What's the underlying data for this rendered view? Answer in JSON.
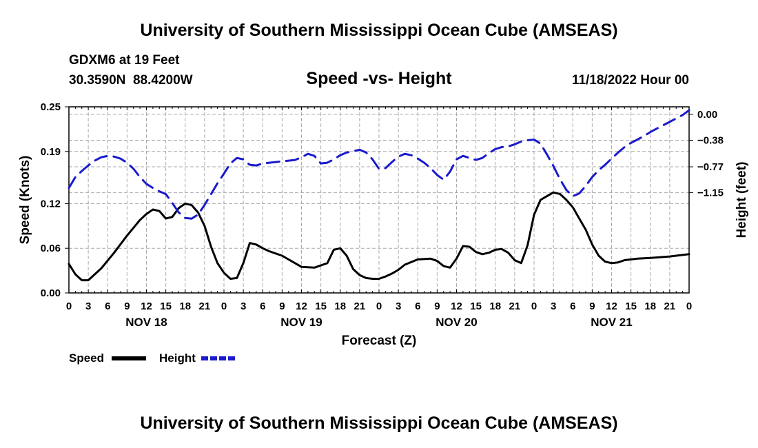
{
  "header": {
    "title": "University of Southern Mississippi Ocean Cube (AMSEAS)",
    "station": "GDXM6 at 19 Feet",
    "coords": "30.3590N  88.4200W",
    "chart_title": "Speed -vs- Height",
    "run_time": "11/18/2022 Hour 00"
  },
  "footer": {
    "title": "University of Southern Mississippi Ocean Cube (AMSEAS)"
  },
  "legend": {
    "speed_label": "Speed",
    "height_label": "Height"
  },
  "colors": {
    "speed": "#000000",
    "height": "#1a1acc",
    "grid": "#aaaaaa"
  },
  "chart_data": {
    "type": "line",
    "title": "Speed -vs- Height",
    "xlabel": "Forecast (Z)",
    "ylabel": "Speed (Knots)",
    "y2label": "Height (feet)",
    "xlim": [
      0,
      96
    ],
    "ylim": [
      0,
      0.25
    ],
    "y2lim": [
      -2.62,
      0.11
    ],
    "yticks": [
      0.0,
      0.06,
      0.12,
      0.19,
      0.25
    ],
    "ytick_labels": [
      "0.00",
      "0.06",
      "0.12",
      "0.19",
      "0.25"
    ],
    "y2ticks": [
      0.0,
      -0.38,
      -0.77,
      -1.15
    ],
    "y2tick_labels": [
      "0.00",
      "−0.38",
      "−0.77",
      "−1.15"
    ],
    "xticks": [
      0,
      3,
      6,
      9,
      12,
      15,
      18,
      21,
      24,
      27,
      30,
      33,
      36,
      39,
      42,
      45,
      48,
      51,
      54,
      57,
      60,
      63,
      66,
      69,
      72,
      75,
      78,
      81,
      84,
      87,
      90,
      93,
      96
    ],
    "xtick_labels": [
      "0",
      "3",
      "6",
      "9",
      "12",
      "15",
      "18",
      "21",
      "0",
      "3",
      "6",
      "9",
      "12",
      "15",
      "18",
      "21",
      "0",
      "3",
      "6",
      "9",
      "12",
      "15",
      "18",
      "21",
      "0",
      "3",
      "6",
      "9",
      "12",
      "15",
      "18",
      "21",
      "0"
    ],
    "day_labels": [
      {
        "x": 12,
        "label": "NOV 18"
      },
      {
        "x": 36,
        "label": "NOV 19"
      },
      {
        "x": 60,
        "label": "NOV 20"
      },
      {
        "x": 84,
        "label": "NOV 21"
      }
    ],
    "series": [
      {
        "name": "Speed",
        "axis": "left",
        "dash": false,
        "x": [
          0,
          1,
          2,
          3,
          5,
          7,
          9,
          11,
          12,
          13,
          14,
          15,
          16,
          17,
          18,
          19,
          20,
          21,
          22,
          23,
          24,
          25,
          26,
          27,
          28,
          29,
          30,
          31,
          33,
          36,
          38,
          40,
          41,
          42,
          43,
          44,
          45,
          46,
          47,
          48,
          49,
          50,
          51,
          52,
          54,
          56,
          57,
          58,
          59,
          60,
          61,
          62,
          63,
          64,
          65,
          66,
          67,
          68,
          69,
          70,
          71,
          72,
          73,
          74,
          75,
          76,
          77,
          78,
          79,
          80,
          81,
          82,
          83,
          84,
          85,
          86,
          87,
          88,
          90,
          93,
          96
        ],
        "values": [
          0.039,
          0.025,
          0.017,
          0.017,
          0.033,
          0.054,
          0.077,
          0.098,
          0.106,
          0.112,
          0.11,
          0.1,
          0.102,
          0.114,
          0.12,
          0.118,
          0.108,
          0.09,
          0.062,
          0.04,
          0.027,
          0.019,
          0.02,
          0.04,
          0.067,
          0.065,
          0.06,
          0.056,
          0.05,
          0.035,
          0.034,
          0.04,
          0.058,
          0.06,
          0.05,
          0.032,
          0.024,
          0.02,
          0.019,
          0.019,
          0.022,
          0.026,
          0.031,
          0.038,
          0.045,
          0.046,
          0.043,
          0.036,
          0.034,
          0.046,
          0.063,
          0.062,
          0.055,
          0.052,
          0.054,
          0.058,
          0.059,
          0.054,
          0.044,
          0.04,
          0.064,
          0.105,
          0.125,
          0.13,
          0.135,
          0.133,
          0.125,
          0.115,
          0.1,
          0.085,
          0.065,
          0.05,
          0.042,
          0.04,
          0.041,
          0.044,
          0.045,
          0.046,
          0.047,
          0.049,
          0.052
        ]
      },
      {
        "name": "Height",
        "axis": "right",
        "dash": true,
        "x": [
          0,
          1,
          2,
          3,
          4,
          5,
          6,
          7,
          8,
          9,
          10,
          11,
          12,
          13,
          14,
          15,
          16,
          17,
          18,
          19,
          20,
          21,
          22,
          23,
          24,
          25,
          26,
          27,
          28,
          29,
          30,
          31,
          32,
          33,
          34,
          35,
          36,
          37,
          38,
          39,
          40,
          41,
          42,
          43,
          44,
          45,
          46,
          47,
          48,
          49,
          50,
          51,
          52,
          53,
          54,
          55,
          56,
          57,
          58,
          59,
          60,
          61,
          62,
          63,
          64,
          65,
          66,
          67,
          68,
          69,
          70,
          71,
          72,
          73,
          74,
          75,
          76,
          77,
          78,
          79,
          80,
          81,
          82,
          83,
          84,
          85,
          86,
          87,
          88,
          89,
          90,
          91,
          92,
          93,
          94,
          95,
          96
        ],
        "values": [
          -1.08,
          -0.92,
          -0.83,
          -0.75,
          -0.68,
          -0.63,
          -0.61,
          -0.62,
          -0.65,
          -0.71,
          -0.8,
          -0.92,
          -1.02,
          -1.08,
          -1.13,
          -1.17,
          -1.3,
          -1.44,
          -1.52,
          -1.53,
          -1.47,
          -1.33,
          -1.17,
          -1.01,
          -0.87,
          -0.72,
          -0.64,
          -0.66,
          -0.74,
          -0.75,
          -0.72,
          -0.71,
          -0.7,
          -0.69,
          -0.68,
          -0.67,
          -0.63,
          -0.58,
          -0.61,
          -0.72,
          -0.71,
          -0.66,
          -0.6,
          -0.56,
          -0.54,
          -0.52,
          -0.56,
          -0.66,
          -0.8,
          -0.79,
          -0.7,
          -0.62,
          -0.58,
          -0.6,
          -0.65,
          -0.71,
          -0.79,
          -0.89,
          -0.96,
          -0.84,
          -0.66,
          -0.61,
          -0.64,
          -0.67,
          -0.64,
          -0.57,
          -0.51,
          -0.48,
          -0.47,
          -0.44,
          -0.4,
          -0.38,
          -0.37,
          -0.43,
          -0.59,
          -0.76,
          -0.95,
          -1.11,
          -1.2,
          -1.16,
          -1.05,
          -0.92,
          -0.82,
          -0.74,
          -0.65,
          -0.56,
          -0.48,
          -0.42,
          -0.37,
          -0.32,
          -0.26,
          -0.21,
          -0.16,
          -0.11,
          -0.06,
          -0.01,
          0.06
        ]
      }
    ]
  }
}
